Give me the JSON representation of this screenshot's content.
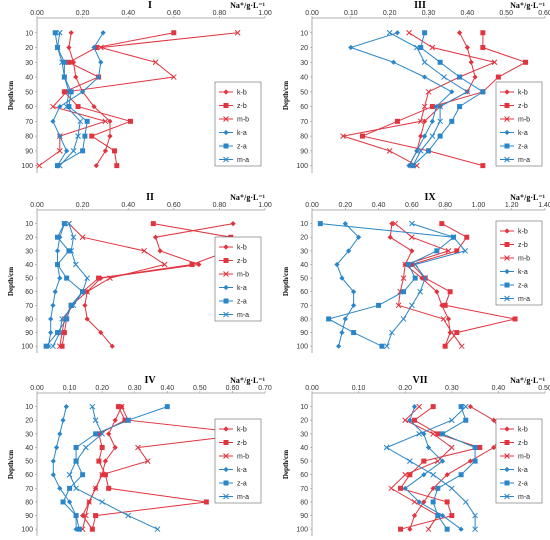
{
  "colors": {
    "red": "#e0343f",
    "blue": "#2a86c8",
    "axis": "#999999",
    "frame": "#666666"
  },
  "chart_data": [
    {
      "type": "line",
      "title": "I",
      "xlabel": "Na⁺/g·L⁻¹",
      "ylabel": "Depth/cm",
      "xlim": [
        0,
        1.0
      ],
      "xticks": [
        "0.00",
        "0.20",
        "0.40",
        "0.60",
        "0.80",
        "1.00"
      ],
      "ylim": [
        0,
        105
      ],
      "yticks": [
        "10",
        "20",
        "30",
        "40",
        "50",
        "60",
        "70",
        "80",
        "90",
        "100"
      ],
      "depths": [
        10,
        20,
        30,
        40,
        50,
        60,
        70,
        80,
        90,
        100
      ],
      "series": [
        {
          "name": "k-b",
          "color": "red",
          "marker": "diamond",
          "values": [
            0.15,
            0.14,
            0.16,
            0.17,
            0.2,
            0.25,
            0.32,
            0.32,
            0.3,
            0.26
          ]
        },
        {
          "name": "z-b",
          "color": "red",
          "marker": "square",
          "values": [
            0.6,
            0.26,
            0.14,
            0.27,
            0.12,
            0.18,
            0.41,
            0.24,
            0.34,
            0.35
          ]
        },
        {
          "name": "m-b",
          "color": "red",
          "marker": "x",
          "values": [
            0.88,
            0.28,
            0.52,
            0.6,
            0.13,
            0.07,
            0.3,
            0.1,
            0.1,
            0.01
          ]
        },
        {
          "name": "k-a",
          "color": "blue",
          "marker": "diamond",
          "values": [
            0.29,
            0.25,
            0.28,
            0.27,
            0.2,
            0.1,
            0.07,
            0.1,
            0.13,
            0.09
          ]
        },
        {
          "name": "z-a",
          "color": "blue",
          "marker": "square",
          "values": [
            0.08,
            0.09,
            0.12,
            0.12,
            0.15,
            0.14,
            0.22,
            0.21,
            0.2,
            0.09
          ]
        },
        {
          "name": "m-a",
          "color": "blue",
          "marker": "x",
          "values": [
            0.1,
            0.09,
            0.11,
            0.12,
            0.14,
            0.13,
            0.19,
            0.18,
            0.16,
            0.1
          ]
        }
      ]
    },
    {
      "type": "line",
      "title": "III",
      "xlabel": "Na⁺/g·L⁻¹",
      "ylabel": "Depth/cm",
      "xlim": [
        0,
        0.6
      ],
      "xticks": [
        "0.00",
        "0.10",
        "0.20",
        "0.30",
        "0.40",
        "0.50",
        "0.60"
      ],
      "ylim": [
        0,
        105
      ],
      "yticks": [
        "10",
        "20",
        "30",
        "40",
        "50",
        "60",
        "70",
        "80",
        "90",
        "100"
      ],
      "depths": [
        10,
        20,
        30,
        40,
        50,
        60,
        70,
        80,
        90,
        100
      ],
      "series": [
        {
          "name": "k-b",
          "color": "red",
          "marker": "diamond",
          "values": [
            0.38,
            0.4,
            0.41,
            0.42,
            0.4,
            0.33,
            0.29,
            0.28,
            0.27,
            0.25
          ]
        },
        {
          "name": "z-b",
          "color": "red",
          "marker": "square",
          "values": [
            0.44,
            0.44,
            0.55,
            0.48,
            0.44,
            0.31,
            0.22,
            0.13,
            0.3,
            0.44
          ]
        },
        {
          "name": "m-b",
          "color": "red",
          "marker": "x",
          "values": [
            0.25,
            0.31,
            0.47,
            0.38,
            0.3,
            0.29,
            0.28,
            0.08,
            0.2,
            0.27
          ]
        },
        {
          "name": "k-a",
          "color": "blue",
          "marker": "diamond",
          "values": [
            0.22,
            0.1,
            0.21,
            0.29,
            0.36,
            0.32,
            0.31,
            0.29,
            0.27,
            0.25
          ]
        },
        {
          "name": "z-a",
          "color": "blue",
          "marker": "square",
          "values": [
            0.29,
            0.28,
            0.33,
            0.38,
            0.44,
            0.38,
            0.36,
            0.33,
            0.3,
            0.26
          ]
        },
        {
          "name": "m-a",
          "color": "blue",
          "marker": "x",
          "values": [
            0.2,
            0.27,
            0.29,
            0.34,
            0.4,
            0.33,
            0.33,
            0.31,
            0.28,
            0.26
          ]
        }
      ]
    },
    {
      "type": "line",
      "title": "II",
      "xlabel": "Na⁺/g·L⁻¹",
      "ylabel": "Depth/cm",
      "xlim": [
        0,
        1.0
      ],
      "xticks": [
        "0.00",
        "0.20",
        "0.40",
        "0.60",
        "0.80",
        "1.00"
      ],
      "ylim": [
        0,
        105
      ],
      "yticks": [
        "10",
        "20",
        "30",
        "40",
        "50",
        "60",
        "70",
        "80",
        "90",
        "100"
      ],
      "depths": [
        10,
        20,
        30,
        40,
        50,
        60,
        70,
        80,
        90,
        100
      ],
      "series": [
        {
          "name": "k-b",
          "color": "red",
          "marker": "diamond",
          "values": [
            0.86,
            0.52,
            0.54,
            0.71,
            0.28,
            0.22,
            0.21,
            0.22,
            0.28,
            0.33
          ]
        },
        {
          "name": "z-b",
          "color": "red",
          "marker": "square",
          "values": [
            0.51,
            0.85,
            0.84,
            0.68,
            0.27,
            0.2,
            0.15,
            0.13,
            0.12,
            0.11
          ]
        },
        {
          "name": "m-b",
          "color": "red",
          "marker": "x",
          "values": [
            0.14,
            0.2,
            0.47,
            0.56,
            0.32,
            0.22,
            0.15,
            0.12,
            0.11,
            0.1
          ]
        },
        {
          "name": "k-a",
          "color": "blue",
          "marker": "diamond",
          "values": [
            0.12,
            0.1,
            0.09,
            0.09,
            0.1,
            0.08,
            0.07,
            0.06,
            0.06,
            0.05
          ]
        },
        {
          "name": "z-a",
          "color": "blue",
          "marker": "square",
          "values": [
            0.12,
            0.09,
            0.14,
            0.09,
            0.13,
            0.2,
            0.15,
            0.13,
            0.09,
            0.04
          ]
        },
        {
          "name": "m-a",
          "color": "blue",
          "marker": "x",
          "values": [
            0.14,
            0.16,
            0.15,
            0.17,
            0.22,
            0.2,
            0.16,
            0.11,
            0.1,
            0.07
          ]
        }
      ]
    },
    {
      "type": "line",
      "title": "IX",
      "xlabel": "Na⁺/g·L⁻¹",
      "ylabel": "Depth/cm",
      "xlim": [
        0,
        1.4
      ],
      "xticks": [
        "0.00",
        "0.20",
        "0.40",
        "0.60",
        "0.80",
        "1.00",
        "1.20",
        "1.40"
      ],
      "ylim": [
        0,
        105
      ],
      "yticks": [
        "10",
        "20",
        "30",
        "40",
        "50",
        "60",
        "70",
        "80",
        "90",
        "100"
      ],
      "depths": [
        10,
        20,
        30,
        40,
        50,
        60,
        70,
        80,
        90,
        100
      ],
      "series": [
        {
          "name": "k-b",
          "color": "red",
          "marker": "diamond",
          "values": [
            0.48,
            0.47,
            0.6,
            0.56,
            0.66,
            0.75,
            0.78,
            0.82,
            0.83,
            0.8
          ]
        },
        {
          "name": "z-b",
          "color": "red",
          "marker": "square",
          "values": [
            0.78,
            0.93,
            0.87,
            0.6,
            0.68,
            0.83,
            0.8,
            1.22,
            0.87,
            0.8
          ]
        },
        {
          "name": "m-b",
          "color": "red",
          "marker": "x",
          "values": [
            0.5,
            0.6,
            0.82,
            0.56,
            0.55,
            0.53,
            0.52,
            0.79,
            0.84,
            0.9
          ]
        },
        {
          "name": "k-a",
          "color": "blue",
          "marker": "diamond",
          "values": [
            0.2,
            0.28,
            0.22,
            0.15,
            0.18,
            0.25,
            0.25,
            0.2,
            0.18,
            0.16
          ]
        },
        {
          "name": "z-a",
          "color": "blue",
          "marker": "square",
          "values": [
            0.05,
            0.85,
            0.75,
            0.58,
            0.62,
            0.55,
            0.4,
            0.1,
            0.25,
            0.42
          ]
        },
        {
          "name": "m-a",
          "color": "blue",
          "marker": "x",
          "values": [
            0.6,
            0.85,
            0.92,
            0.62,
            0.68,
            0.65,
            0.6,
            0.55,
            0.48,
            0.45
          ]
        }
      ]
    },
    {
      "type": "line",
      "title": "IV",
      "xlabel": "Na⁺/g·L⁻¹",
      "ylabel": "Depth/cm",
      "xlim": [
        0,
        0.7
      ],
      "xticks": [
        "0.00",
        "0.10",
        "0.20",
        "0.30",
        "0.40",
        "0.50",
        "0.60",
        "0.70"
      ],
      "ylim": [
        0,
        105
      ],
      "yticks": [
        "10",
        "20",
        "30",
        "40",
        "50",
        "60",
        "70",
        "80",
        "90",
        "100"
      ],
      "depths": [
        10,
        20,
        30,
        40,
        50,
        60,
        70,
        80,
        90,
        100
      ],
      "series": [
        {
          "name": "k-b",
          "color": "red",
          "marker": "diamond",
          "values": [
            0.26,
            0.24,
            0.22,
            0.24,
            0.21,
            0.2,
            0.18,
            0.16,
            0.14,
            0.17
          ]
        },
        {
          "name": "z-b",
          "color": "red",
          "marker": "square",
          "values": [
            0.25,
            0.27,
            0.19,
            0.2,
            0.19,
            0.21,
            0.22,
            0.52,
            0.18,
            0.17
          ]
        },
        {
          "name": "m-b",
          "color": "red",
          "marker": "x",
          "values": [
            0.26,
            0.28,
            0.66,
            0.31,
            0.34,
            0.2,
            0.18,
            0.16,
            0.15,
            0.14
          ]
        },
        {
          "name": "k-a",
          "color": "blue",
          "marker": "diamond",
          "values": [
            0.09,
            0.08,
            0.07,
            0.06,
            0.05,
            0.05,
            0.07,
            0.1,
            0.12,
            0.12
          ]
        },
        {
          "name": "z-a",
          "color": "blue",
          "marker": "square",
          "values": [
            0.4,
            0.28,
            0.18,
            0.12,
            0.12,
            0.14,
            0.1,
            0.08,
            0.12,
            0.13
          ]
        },
        {
          "name": "m-a",
          "color": "blue",
          "marker": "x",
          "values": [
            0.17,
            0.18,
            0.2,
            0.15,
            0.12,
            0.1,
            0.12,
            0.2,
            0.28,
            0.37
          ]
        }
      ]
    },
    {
      "type": "line",
      "title": "VII",
      "xlabel": "Na⁺/g·L⁻¹",
      "ylabel": "Depth/cm",
      "xlim": [
        0,
        0.5
      ],
      "xticks": [
        "0.00",
        "0.10",
        "0.20",
        "0.30",
        "0.40",
        "0.50"
      ],
      "ylim": [
        0,
        105
      ],
      "yticks": [
        "10",
        "20",
        "30",
        "40",
        "50",
        "60",
        "70",
        "80",
        "90",
        "100"
      ],
      "depths": [
        10,
        20,
        30,
        40,
        50,
        60,
        70,
        80,
        90,
        100
      ],
      "series": [
        {
          "name": "k-b",
          "color": "red",
          "marker": "diamond",
          "values": [
            0.34,
            0.39,
            0.41,
            0.39,
            0.34,
            0.29,
            0.26,
            0.24,
            0.22,
            0.21
          ]
        },
        {
          "name": "z-b",
          "color": "red",
          "marker": "square",
          "values": [
            0.26,
            0.22,
            0.27,
            0.36,
            0.24,
            0.21,
            0.19,
            0.29,
            0.3,
            0.19
          ]
        },
        {
          "name": "m-b",
          "color": "red",
          "marker": "x",
          "values": [
            0.23,
            0.2,
            0.26,
            0.3,
            0.27,
            0.2,
            0.17,
            0.22,
            0.27,
            0.25
          ]
        },
        {
          "name": "k-a",
          "color": "blue",
          "marker": "diamond",
          "values": [
            0.22,
            0.21,
            0.24,
            0.25,
            0.28,
            0.24,
            0.2,
            0.23,
            0.28,
            0.32
          ]
        },
        {
          "name": "z-a",
          "color": "blue",
          "marker": "square",
          "values": [
            0.32,
            0.33,
            0.28,
            0.35,
            0.35,
            0.32,
            0.27,
            0.26,
            0.27,
            0.29
          ]
        },
        {
          "name": "m-a",
          "color": "blue",
          "marker": "x",
          "values": [
            0.33,
            0.3,
            0.23,
            0.16,
            0.21,
            0.26,
            0.3,
            0.33,
            0.35,
            0.35
          ]
        }
      ]
    }
  ]
}
